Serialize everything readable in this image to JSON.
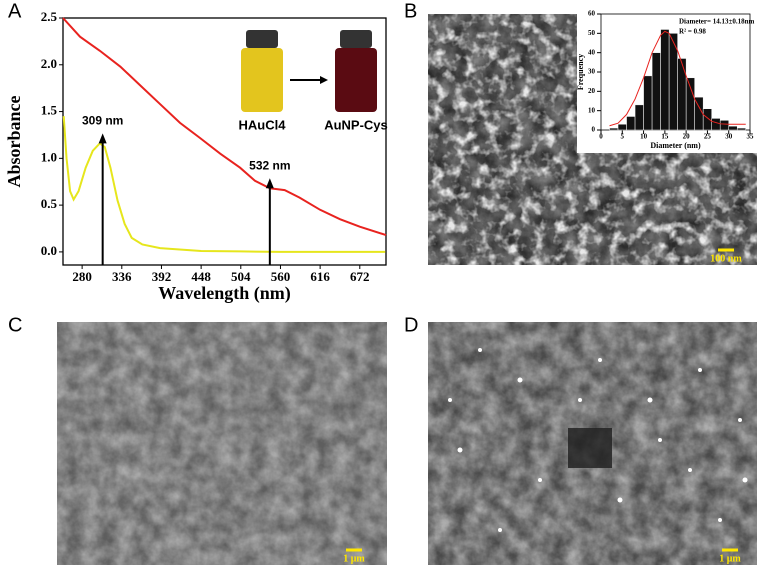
{
  "chart_data": [
    {
      "type": "line",
      "x_label": "Wavelength (nm)",
      "y_label": "Absorbance",
      "xlim": [
        253,
        709
      ],
      "xticks": [
        280,
        336,
        392,
        448,
        504,
        560,
        616,
        672
      ],
      "ylim": [
        -0.14,
        2.5
      ],
      "yticks": [
        {
          "value": 0,
          "label": "0.0"
        },
        {
          "value": 0.5,
          "label": "0.5"
        },
        {
          "value": 1,
          "label": "1.0"
        },
        {
          "value": 1.5,
          "label": "1.5"
        },
        {
          "value": 2,
          "label": "2.0"
        },
        {
          "value": 2.5,
          "label": "2.5"
        }
      ],
      "series": [
        {
          "name": "AuNP-Cys",
          "color": "#e8231f",
          "x": [
            253,
            277,
            305,
            334,
            362,
            390,
            418,
            446,
            475,
            503,
            524,
            545,
            566,
            587,
            616,
            644,
            672,
            709
          ],
          "values": [
            2.5,
            2.3,
            2.15,
            1.98,
            1.78,
            1.58,
            1.38,
            1.22,
            1.05,
            0.9,
            0.76,
            0.68,
            0.66,
            0.58,
            0.45,
            0.35,
            0.27,
            0.18
          ]
        },
        {
          "name": "HAuCl4",
          "color": "#e6e61c",
          "x": [
            254,
            258,
            263,
            268,
            275,
            285,
            295,
            305,
            312,
            320,
            330,
            340,
            350,
            365,
            390,
            448,
            504,
            560,
            672,
            708
          ],
          "values": [
            1.45,
            1.0,
            0.65,
            0.56,
            0.65,
            0.9,
            1.08,
            1.16,
            1.12,
            0.9,
            0.55,
            0.3,
            0.15,
            0.08,
            0.04,
            0.01,
            0.005,
            0,
            0,
            0
          ]
        }
      ],
      "annotations": [
        {
          "text": "309 nm",
          "x": 309,
          "y": 1.16
        },
        {
          "text": "532 nm",
          "x": 545,
          "y": 0.68
        }
      ]
    },
    {
      "type": "histogram",
      "annotations": [
        "Diameter= 14.13±0.18nm",
        "R² = 0.98"
      ],
      "x_label": "Diameter (nm)",
      "y_label": "Frequency",
      "xlim": [
        0,
        35
      ],
      "xticks": [
        0,
        5,
        10,
        15,
        20,
        25,
        30,
        35
      ],
      "ylim": [
        0,
        60
      ],
      "yticks": [
        0,
        10,
        20,
        30,
        40,
        50,
        60
      ],
      "bins": [
        2,
        4,
        6,
        8,
        10,
        12,
        14,
        16,
        18,
        20,
        22,
        24,
        26,
        28,
        30,
        32,
        34
      ],
      "values": [
        1,
        3,
        7,
        13,
        28,
        40,
        52,
        50,
        37,
        27,
        17,
        11,
        6,
        5,
        2,
        1
      ],
      "color": "#111111",
      "fit": {
        "color": "#e8231f",
        "x": [
          2,
          4,
          6,
          8,
          10,
          12,
          14,
          15,
          16,
          18,
          20,
          22,
          24,
          26,
          28,
          30,
          32,
          34
        ],
        "values": [
          2.2,
          3.5,
          8,
          16,
          27,
          40,
          49,
          51,
          50,
          41,
          28,
          16,
          8,
          4.5,
          3.2,
          3,
          3,
          3
        ]
      }
    }
  ],
  "figure": {
    "panel_labels": [
      "A",
      "B",
      "C",
      "D"
    ],
    "vials": [
      "HAuCl4",
      "AuNP-Cys"
    ],
    "scale_bars": [
      "100 nm",
      "1 μm",
      "1 μm"
    ]
  }
}
